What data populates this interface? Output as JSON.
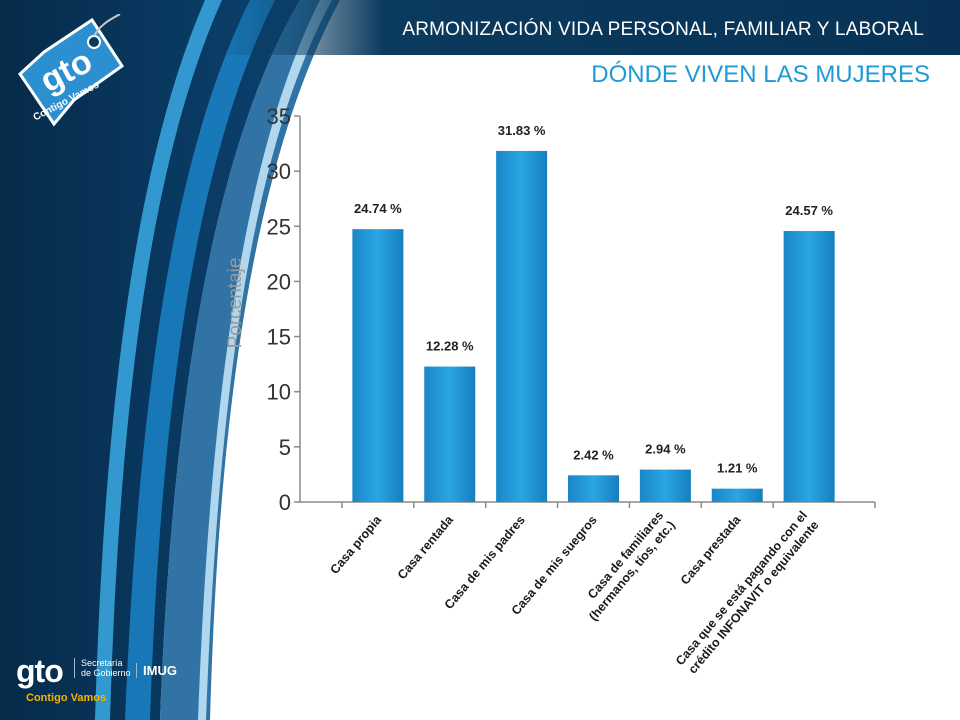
{
  "header": {
    "text": "ARMONIZACIÓN VIDA PERSONAL, FAMILIAR Y LABORAL"
  },
  "page": {
    "title": "DÓNDE VIVEN LAS MUJERES"
  },
  "branding": {
    "tag_logo": "gto",
    "tag_slogan": "Contigo Vamos",
    "footer_logo": "gto",
    "footer_slogan": "Contigo Vamos",
    "footer_secretaria": "Secretaría de Gobierno",
    "footer_imug": "IMUG"
  },
  "colors": {
    "bar": "#1e9ad6",
    "bar_dark": "#1480bd",
    "navy": "#073255",
    "accent_blue": "#1e9ad6"
  },
  "chart_data": {
    "type": "bar",
    "title": "",
    "ylabel": "Porcentaje",
    "xlabel": "",
    "ylim": [
      0,
      35
    ],
    "yticks": [
      0,
      5,
      10,
      15,
      20,
      25,
      30,
      35
    ],
    "categories": [
      [
        "Casa propia"
      ],
      [
        "Casa rentada"
      ],
      [
        "Casa de mis padres"
      ],
      [
        "Casa de mis suegros"
      ],
      [
        "Casa de familiares",
        "(hermanos, tíos, etc.)"
      ],
      [
        "Casa prestada"
      ],
      [
        "Casa que se está pagando con el",
        "crédito INFONAVIT o equivalente"
      ]
    ],
    "values": [
      24.74,
      12.28,
      31.83,
      2.42,
      2.94,
      1.21,
      24.57
    ],
    "labels": [
      "24.74 %",
      "12.28 %",
      "31.83 %",
      "2.42 %",
      "2.94 %",
      "1.21 %",
      "24.57 %"
    ]
  }
}
